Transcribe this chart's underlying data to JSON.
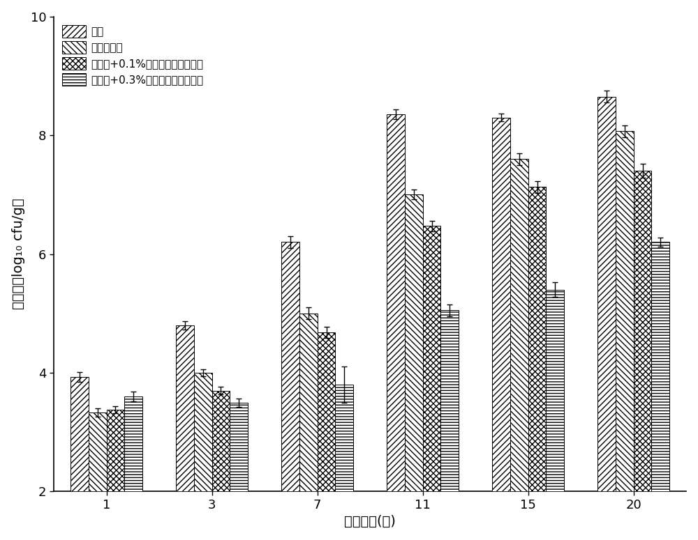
{
  "categories": [
    "1",
    "3",
    "7",
    "11",
    "15",
    "20"
  ],
  "series": [
    {
      "label": "对照",
      "values": [
        3.93,
        4.8,
        6.2,
        8.35,
        8.3,
        8.65
      ],
      "errors": [
        0.08,
        0.07,
        0.1,
        0.08,
        0.07,
        0.1
      ],
      "hatch": "////"
    },
    {
      "label": "壳聚糖涂膜",
      "values": [
        3.33,
        4.0,
        5.0,
        7.0,
        7.6,
        8.07
      ],
      "errors": [
        0.07,
        0.06,
        0.1,
        0.08,
        0.1,
        0.1
      ],
      "hatch": "\\\\\\\\"
    },
    {
      "label": "壳聚糖+0.1%月桂酸单甘油酯涂膜",
      "values": [
        3.38,
        3.7,
        4.68,
        6.47,
        7.13,
        7.4
      ],
      "errors": [
        0.06,
        0.07,
        0.09,
        0.09,
        0.1,
        0.12
      ],
      "hatch": "xxxx"
    },
    {
      "label": "壳聚糖+0.3%月桂酸单甘油酯涂膜",
      "values": [
        3.6,
        3.5,
        3.8,
        5.05,
        5.4,
        6.2
      ],
      "errors": [
        0.08,
        0.07,
        0.3,
        0.1,
        0.12,
        0.08
      ],
      "hatch": "----"
    }
  ],
  "xlabel": "贮藏时间(天)",
  "ylabel": "嘻冷菌（log₁₀ cfu/g）",
  "ylim": [
    2,
    10
  ],
  "yticks": [
    2,
    4,
    6,
    8,
    10
  ],
  "bar_width": 0.17,
  "figsize": [
    10,
    7.75
  ],
  "dpi": 100,
  "fontsize_axis_label": 14,
  "fontsize_tick": 13,
  "fontsize_legend": 11
}
